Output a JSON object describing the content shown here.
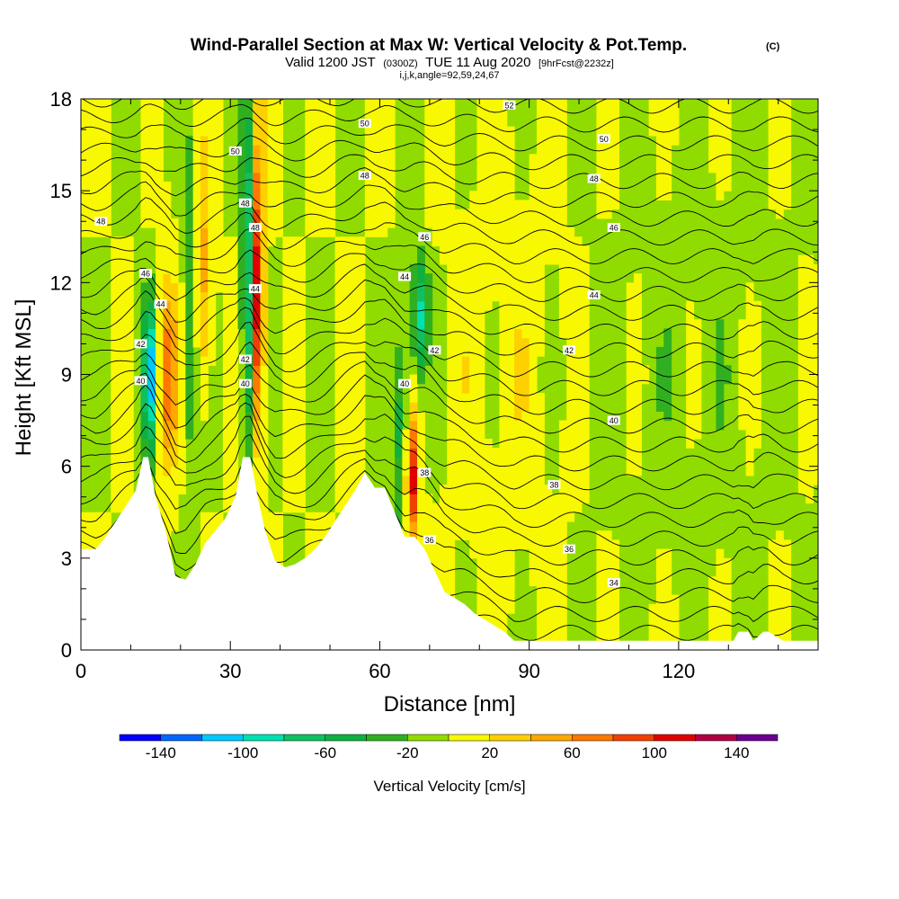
{
  "chart_data": {
    "type": "heatmap",
    "title": "Wind-Parallel Section at Max W: Vertical Velocity & Pot.Temp.",
    "title_mark": "(C)",
    "subtitle": {
      "part1": "Valid 1200 JST",
      "part2": "(0300Z)",
      "part3": "TUE 11 Aug 2020",
      "part4": "[9hrFcst@2232z]"
    },
    "subtitle2": "i,j,k,angle=92,59,24,67",
    "xlabel": "Distance [nm]",
    "ylabel": "Height [Kft MSL]",
    "xlim": [
      0,
      148
    ],
    "ylim": [
      0,
      18
    ],
    "x_ticks": [
      0,
      30,
      60,
      90,
      120
    ],
    "y_ticks": [
      0,
      3,
      6,
      9,
      12,
      15,
      18
    ],
    "colorbar": {
      "label": "Vertical Velocity [cm/s]",
      "ticks": [
        -140,
        -100,
        -60,
        -20,
        20,
        60,
        100,
        140
      ],
      "levels": [
        -160,
        -140,
        -120,
        -100,
        -80,
        -60,
        -40,
        -20,
        0,
        20,
        40,
        60,
        80,
        100,
        120,
        140,
        160
      ],
      "colors": [
        "#0000ff",
        "#0066ff",
        "#00c8ff",
        "#00e0b0",
        "#10c060",
        "#10b040",
        "#30b020",
        "#90dc00",
        "#f8f800",
        "#ffd000",
        "#ffa800",
        "#ff7800",
        "#f04000",
        "#e00000",
        "#b00040",
        "#6a0090"
      ]
    },
    "terrain_profile": {
      "x": [
        0,
        3,
        5,
        7,
        9,
        11,
        12.5,
        13.5,
        15,
        17,
        18,
        19,
        21,
        23,
        25,
        27,
        29,
        31,
        32.5,
        34,
        35.5,
        37,
        39,
        41,
        43,
        45,
        47,
        49,
        51,
        53,
        55,
        57,
        59,
        61,
        63,
        65,
        67,
        69,
        71,
        73,
        75,
        77,
        79,
        81,
        83,
        85,
        87,
        89,
        131,
        132,
        134,
        135,
        137,
        138,
        141,
        144,
        146,
        148
      ],
      "height_kft": [
        3.3,
        3.3,
        3.7,
        4.2,
        4.7,
        5.2,
        6.3,
        6.3,
        5.0,
        3.9,
        3.2,
        2.4,
        2.3,
        2.8,
        3.5,
        3.9,
        4.3,
        5.0,
        6.3,
        6.3,
        5.0,
        3.9,
        2.9,
        2.7,
        2.8,
        3.0,
        3.3,
        3.7,
        4.2,
        4.7,
        5.2,
        5.8,
        5.3,
        5.3,
        4.5,
        3.7,
        3.7,
        3.3,
        2.6,
        1.9,
        1.7,
        1.5,
        1.2,
        1.0,
        0.8,
        0.6,
        0.3,
        0.3,
        0.3,
        0.6,
        0.6,
        0.3,
        0.6,
        0.6,
        0.3,
        0.3,
        0.3,
        0.3
      ]
    },
    "vertical_velocity_features": [
      {
        "x": [
          12,
          16
        ],
        "z": [
          6.5,
          11.5
        ],
        "w": -130
      },
      {
        "x": [
          14,
          20
        ],
        "z": [
          6,
          12
        ],
        "w": 80
      },
      {
        "x": [
          20,
          24
        ],
        "z": [
          4,
          17
        ],
        "w": -40
      },
      {
        "x": [
          22,
          27
        ],
        "z": [
          8,
          16
        ],
        "w": 50
      },
      {
        "x": [
          32,
          35
        ],
        "z": [
          6.5,
          18
        ],
        "w": -100
      },
      {
        "x": [
          34,
          37
        ],
        "z": [
          7,
          16.5
        ],
        "w": 130
      },
      {
        "x": [
          62,
          66
        ],
        "z": [
          3.5,
          11
        ],
        "w": -50
      },
      {
        "x": [
          65,
          68
        ],
        "z": [
          3.5,
          7.5
        ],
        "w": 110
      },
      {
        "x": [
          66,
          70
        ],
        "z": [
          9,
          13
        ],
        "w": -90
      },
      {
        "x": [
          70,
          100
        ],
        "z": [
          0.5,
          18
        ],
        "w": 10
      },
      {
        "x": [
          100,
          148
        ],
        "z": [
          0.3,
          18
        ],
        "w": -10
      }
    ],
    "theta_contour_labels": [
      {
        "text": "52",
        "x": 86,
        "z": 17.8
      },
      {
        "text": "50",
        "x": 57,
        "z": 17.2
      },
      {
        "text": "50",
        "x": 105,
        "z": 16.7
      },
      {
        "text": "50",
        "x": 31,
        "z": 16.3
      },
      {
        "text": "48",
        "x": 57,
        "z": 15.5
      },
      {
        "text": "48",
        "x": 103,
        "z": 15.4
      },
      {
        "text": "48",
        "x": 33,
        "z": 14.6
      },
      {
        "text": "48",
        "x": 4,
        "z": 14.0
      },
      {
        "text": "48",
        "x": 35,
        "z": 13.8
      },
      {
        "text": "46",
        "x": 69,
        "z": 13.5
      },
      {
        "text": "46",
        "x": 107,
        "z": 13.8
      },
      {
        "text": "46",
        "x": 13,
        "z": 12.3
      },
      {
        "text": "44",
        "x": 65,
        "z": 12.2
      },
      {
        "text": "44",
        "x": 35,
        "z": 11.8
      },
      {
        "text": "44",
        "x": 103,
        "z": 11.6
      },
      {
        "text": "44",
        "x": 16,
        "z": 11.3
      },
      {
        "text": "42",
        "x": 12,
        "z": 10.0
      },
      {
        "text": "42",
        "x": 71,
        "z": 9.8
      },
      {
        "text": "42",
        "x": 98,
        "z": 9.8
      },
      {
        "text": "42",
        "x": 33,
        "z": 9.5
      },
      {
        "text": "40",
        "x": 12,
        "z": 8.8
      },
      {
        "text": "40",
        "x": 33,
        "z": 8.7
      },
      {
        "text": "40",
        "x": 65,
        "z": 8.7
      },
      {
        "text": "40",
        "x": 107,
        "z": 7.5
      },
      {
        "text": "38",
        "x": 69,
        "z": 5.8
      },
      {
        "text": "38",
        "x": 95,
        "z": 5.4
      },
      {
        "text": "36",
        "x": 70,
        "z": 3.6
      },
      {
        "text": "36",
        "x": 98,
        "z": 3.3
      },
      {
        "text": "34",
        "x": 107,
        "z": 2.2
      }
    ],
    "grid": false,
    "legend": "bottom"
  }
}
